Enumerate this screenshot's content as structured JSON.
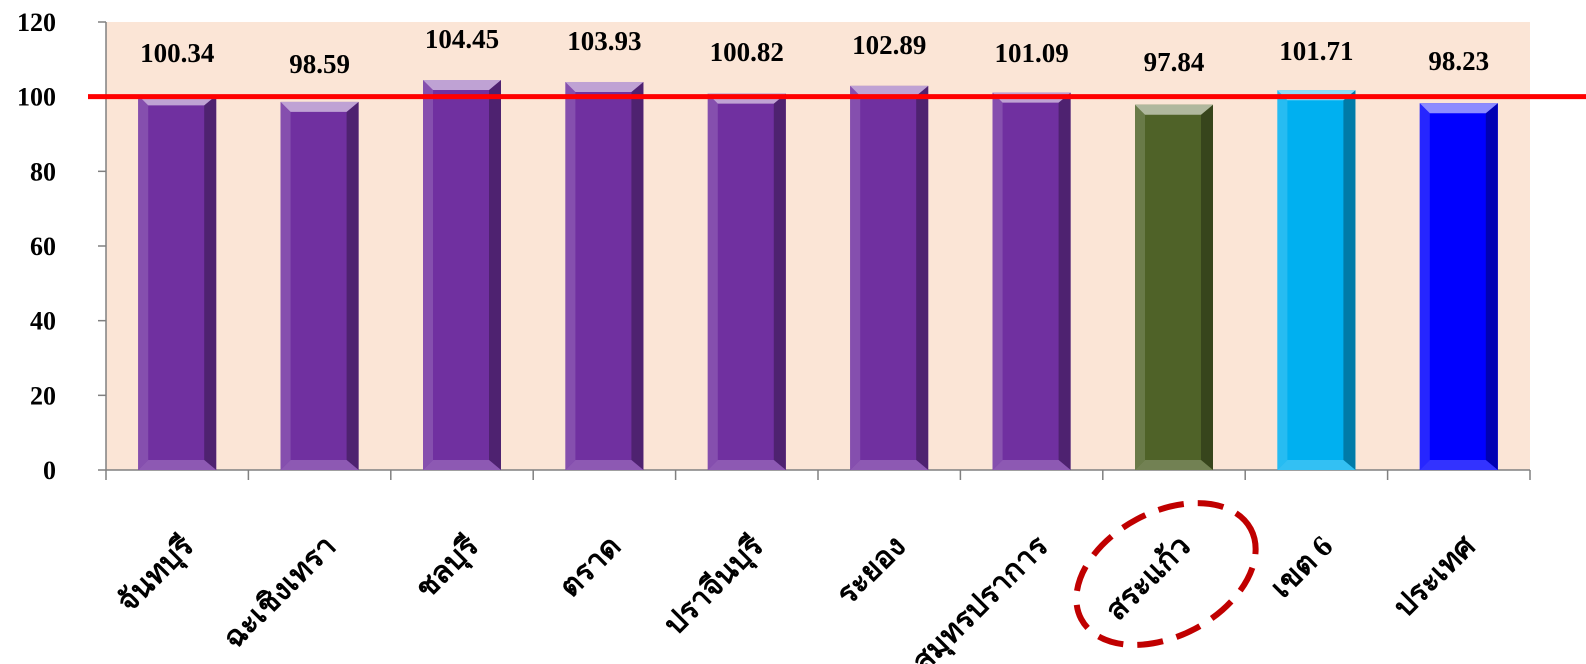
{
  "chart_data": {
    "type": "bar",
    "categories": [
      "จันทบุรี",
      "ฉะเชิงเทรา",
      "ชลบุรี",
      "ตราด",
      "ปราจีนบุรี",
      "ระยอง",
      "สมุทรปราการ",
      "สระแก้ว",
      "เขต 6",
      "ประเทศ"
    ],
    "values": [
      100.34,
      98.59,
      104.45,
      103.93,
      100.82,
      102.89,
      101.09,
      97.84,
      101.71,
      98.23
    ],
    "value_labels": [
      "100.34",
      "98.59",
      "104.45",
      "103.93",
      "100.82",
      "102.89",
      "101.09",
      "97.84",
      "101.71",
      "98.23"
    ],
    "ylim": [
      0,
      120
    ],
    "yticks": [
      0,
      20,
      40,
      60,
      80,
      100,
      120
    ],
    "ytick_labels": [
      "0",
      "20",
      "40",
      "60",
      "80",
      "100",
      "120"
    ],
    "reference_line": 100,
    "grid": false,
    "title": "",
    "xlabel": "",
    "ylabel": "",
    "highlighted_category": "สระแก้ว"
  },
  "colors": {
    "plot_background": "#FBE5D6",
    "purple_bar": "#7030A0",
    "highlight_bar": "#4F6228",
    "region_bar": "#00B0F0",
    "country_bar": "#0000FF",
    "reference_line": "#FF0000",
    "highlight_ellipse": "#C00000"
  },
  "bar_colors": [
    "#7030A0",
    "#7030A0",
    "#7030A0",
    "#7030A0",
    "#7030A0",
    "#7030A0",
    "#7030A0",
    "#4F6228",
    "#00B0F0",
    "#0000FF"
  ]
}
